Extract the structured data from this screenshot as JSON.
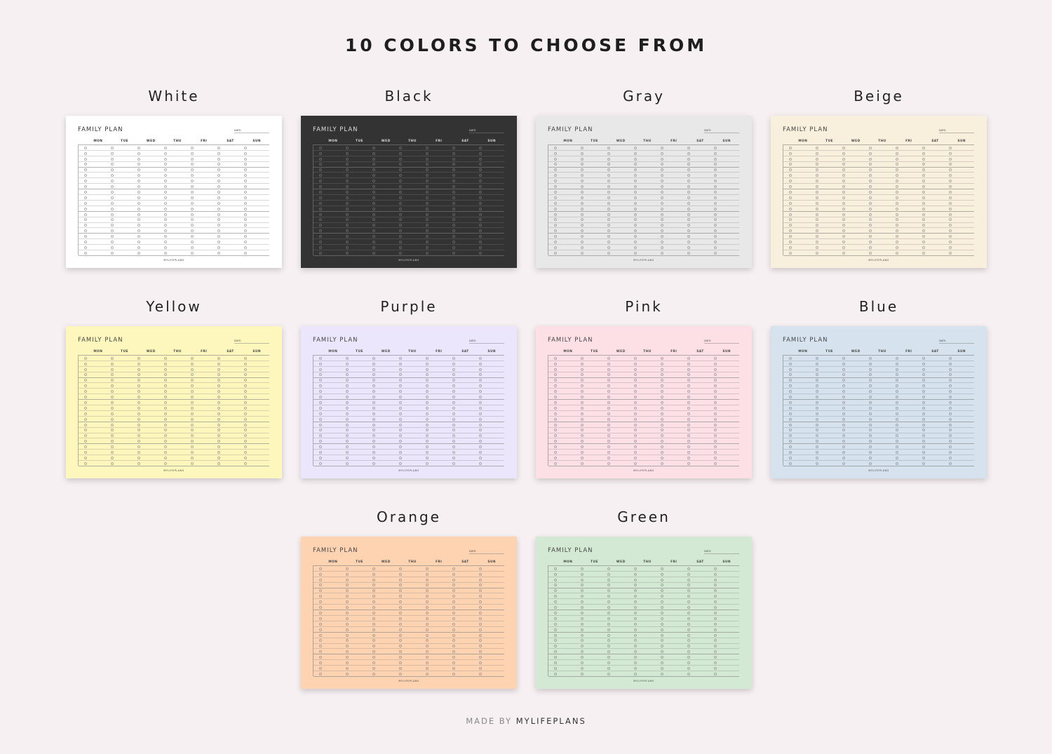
{
  "heading": "10 COLORS TO CHOOSE FROM",
  "planner": {
    "title": "FAMILY PLAN",
    "date_label": "DATE:",
    "days": [
      "MON",
      "TUE",
      "WED",
      "THU",
      "FRI",
      "SAT",
      "SUN"
    ],
    "footer": "MYLIFEPLANS"
  },
  "variants": [
    {
      "name": "White",
      "bg": "#ffffff",
      "fg": "#333333"
    },
    {
      "name": "Black",
      "bg": "#333333",
      "fg": "#dddddd"
    },
    {
      "name": "Gray",
      "bg": "#e9e8e8",
      "fg": "#444444"
    },
    {
      "name": "Beige",
      "bg": "#f8efdc",
      "fg": "#444444"
    },
    {
      "name": "Yellow",
      "bg": "#fef7bd",
      "fg": "#444444"
    },
    {
      "name": "Purple",
      "bg": "#ebe6fb",
      "fg": "#444444"
    },
    {
      "name": "Pink",
      "bg": "#fde0e6",
      "fg": "#444444"
    },
    {
      "name": "Blue",
      "bg": "#d6e2ee",
      "fg": "#444444"
    },
    {
      "name": "Orange",
      "bg": "#fdd3b2",
      "fg": "#444444"
    },
    {
      "name": "Green",
      "bg": "#d4e9d3",
      "fg": "#444444"
    }
  ],
  "footer": {
    "prefix": "MADE BY",
    "brand": "MYLIFEPLANS"
  }
}
